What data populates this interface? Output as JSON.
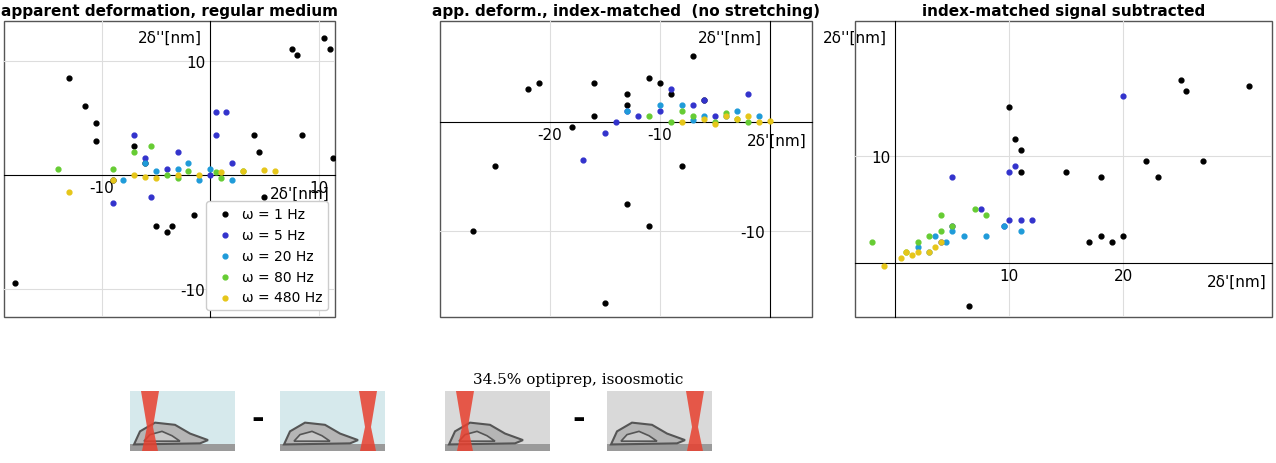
{
  "chart_data": [
    {
      "type": "scatter",
      "title": "apparent deformation, regular medium",
      "x_label": "2δ'[nm]",
      "y_label": "2δ''[nm]",
      "xlim": [
        -19,
        11.5
      ],
      "ylim": [
        -12.5,
        13.5
      ],
      "xticks": [
        -10,
        10
      ],
      "yticks": [
        -10,
        10
      ],
      "grid": true,
      "legend": "lower right",
      "marker": "o",
      "annotations": {
        "operator": "-"
      },
      "series": [
        {
          "name": "ω = 1 Hz",
          "color": "#000000",
          "x": [
            -13,
            -11.5,
            -10.5,
            -10.5,
            -9,
            -5,
            -4,
            -3.5,
            -1.5,
            -18,
            7.5,
            8,
            10.5,
            11,
            4,
            4.5,
            8.5,
            11.3,
            5,
            -7,
            -6
          ],
          "y": [
            8.5,
            6,
            4.5,
            3,
            -0.5,
            -4.5,
            -5,
            -4.5,
            -3.5,
            -9.5,
            11,
            10.5,
            12,
            11,
            3.5,
            2,
            3.5,
            1.5,
            -2,
            2.5,
            1
          ]
        },
        {
          "name": "ω = 5 Hz",
          "color": "#3333cc",
          "x": [
            -7,
            -9,
            -5.5,
            0.5,
            1.5,
            0.5,
            -6,
            2,
            0,
            -3,
            -4
          ],
          "y": [
            3.5,
            -2.5,
            -2,
            5.5,
            5.5,
            3.5,
            1.5,
            1,
            0,
            2,
            0.5
          ]
        },
        {
          "name": "ω = 20 Hz",
          "color": "#1f9bd9",
          "x": [
            -8,
            -6,
            -3,
            -1,
            0,
            2,
            -5,
            -2
          ],
          "y": [
            -0.5,
            1,
            0.5,
            -0.5,
            0.5,
            -0.5,
            0.3,
            1
          ]
        },
        {
          "name": "ω = 80 Hz",
          "color": "#66cc33",
          "x": [
            -14,
            -9,
            -7,
            -5.5,
            -4,
            -2,
            0.5,
            3,
            1,
            -3
          ],
          "y": [
            0.5,
            0.5,
            2,
            2.5,
            0,
            0.3,
            0.2,
            0.3,
            -0.3,
            -0.3
          ]
        },
        {
          "name": "ω = 480 Hz",
          "color": "#e6c619",
          "x": [
            -13,
            -9,
            -7,
            -5,
            -3,
            -1,
            1,
            3,
            5,
            6,
            -6
          ],
          "y": [
            -1.5,
            -0.5,
            0,
            -0.3,
            0,
            0,
            0.2,
            0.3,
            0.4,
            0.3,
            -0.2
          ]
        }
      ]
    },
    {
      "type": "scatter",
      "title": "app. deform., index-matched  (no stretching)",
      "x_label": "2δ'[nm]",
      "y_label": "2δ''[nm]",
      "xlim": [
        -30,
        3.8
      ],
      "ylim": [
        -17.8,
        9.2
      ],
      "xticks": [
        -20,
        -10
      ],
      "yticks": [
        -10
      ],
      "grid": true,
      "marker": "o",
      "annotations": {
        "caption": "34.5% optiprep, isoosmotic",
        "operator": "-"
      },
      "series": [
        {
          "name": "ω = 1 Hz",
          "color": "#000000",
          "x": [
            -27,
            -25,
            -22,
            -21,
            -18,
            -16,
            -15,
            -13,
            -11,
            -13,
            -11,
            -10,
            -8,
            -7,
            -6,
            -16,
            -13,
            -9
          ],
          "y": [
            -10,
            -4,
            3,
            3.5,
            -0.5,
            0.5,
            -16.5,
            -7.5,
            -9.5,
            2.5,
            4,
            3.5,
            -4,
            6,
            2,
            3.5,
            1.5,
            2.5
          ]
        },
        {
          "name": "ω = 5 Hz",
          "color": "#3333cc",
          "x": [
            -17,
            -14,
            -13,
            -10,
            -7,
            -5,
            -2,
            -12,
            -9,
            -15,
            -6
          ],
          "y": [
            -3.5,
            0,
            1,
            1,
            1.5,
            0.5,
            2.5,
            0.5,
            3,
            -1,
            2
          ]
        },
        {
          "name": "ω = 20 Hz",
          "color": "#1f9bd9",
          "x": [
            -13,
            -10,
            -8,
            -6,
            -4,
            -3,
            -1,
            -7
          ],
          "y": [
            1,
            1.5,
            1.5,
            0.5,
            0.5,
            1,
            0.5,
            0.2
          ]
        },
        {
          "name": "ω = 80 Hz",
          "color": "#66cc33",
          "x": [
            -11,
            -9,
            -7,
            -5,
            -3,
            -2,
            -8,
            -4
          ],
          "y": [
            0.5,
            0,
            0.5,
            0,
            0.3,
            0,
            1,
            0.8
          ]
        },
        {
          "name": "ω = 480 Hz",
          "color": "#e6c619",
          "x": [
            -8,
            -6,
            -4,
            -3,
            -2,
            -1,
            0,
            -5
          ],
          "y": [
            0,
            0.3,
            0.5,
            0.3,
            0.5,
            0,
            0.1,
            -0.2
          ]
        }
      ]
    },
    {
      "type": "scatter",
      "title": "index-matched signal subtracted",
      "x_label": "2δ'[nm]",
      "y_label": "2δ''[nm]",
      "xlim": [
        -3.5,
        33
      ],
      "ylim": [
        -5,
        22.5
      ],
      "xticks": [
        10,
        20
      ],
      "yticks": [
        10
      ],
      "grid": true,
      "marker": "o",
      "series": [
        {
          "name": "ω = 1 Hz",
          "color": "#000000",
          "x": [
            6.5,
            10,
            10.5,
            11,
            11,
            15,
            18,
            17,
            18,
            19,
            20,
            22,
            23,
            25,
            25.5,
            27,
            31
          ],
          "y": [
            -4,
            14.5,
            11.5,
            10.5,
            8.5,
            8.5,
            8,
            2,
            2.5,
            2,
            2.5,
            9.5,
            8,
            17,
            16,
            9.5,
            16.5
          ]
        },
        {
          "name": "ω = 5 Hz",
          "color": "#3333cc",
          "x": [
            5,
            9.5,
            10,
            10,
            10.5,
            11,
            12,
            20,
            5,
            7.5,
            4
          ],
          "y": [
            8,
            3.5,
            8.5,
            4,
            9,
            4,
            4,
            15.5,
            3.5,
            5,
            2
          ]
        },
        {
          "name": "ω = 20 Hz",
          "color": "#1f9bd9",
          "x": [
            2,
            3.5,
            4.5,
            5,
            6,
            8,
            9.5,
            11,
            3
          ],
          "y": [
            1.5,
            2.5,
            2,
            3,
            2.5,
            2.5,
            3.5,
            3,
            1
          ]
        },
        {
          "name": "ω = 80 Hz",
          "color": "#66cc33",
          "x": [
            -2,
            1,
            2,
            3,
            4,
            5,
            7,
            4,
            8
          ],
          "y": [
            2,
            1,
            2,
            2.5,
            4.5,
            3.5,
            5,
            3,
            4.5
          ]
        },
        {
          "name": "ω = 480 Hz",
          "color": "#e6c619",
          "x": [
            -1,
            0.5,
            1,
            2,
            3,
            4,
            3.5,
            1.5
          ],
          "y": [
            -0.3,
            0.5,
            1,
            1,
            1,
            2,
            1.5,
            0.8
          ]
        }
      ]
    }
  ]
}
